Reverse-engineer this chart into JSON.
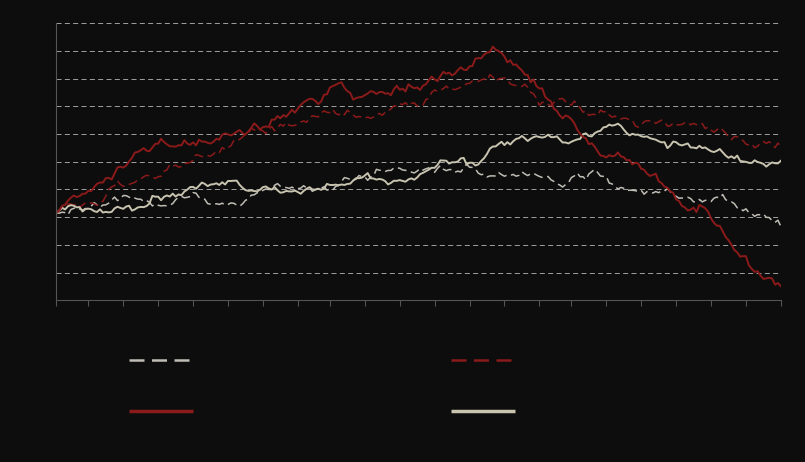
{
  "background_color": "#0d0d0d",
  "plot_bg_color": "#0d0d0d",
  "grid_color": "#ffffff",
  "darkred": "#8b1a1a",
  "lightgray": "#c8c4b0",
  "blackish": "#c0bdb5",
  "n_points": 250,
  "figsize": [
    8.05,
    4.62
  ],
  "dpi": 100,
  "legend_items": [
    {
      "color": "#c0bdb5",
      "linestyle": "dashed",
      "label": ""
    },
    {
      "color": "#8b1a1a",
      "linestyle": "dashed",
      "label": ""
    },
    {
      "color": "#8b1a1a",
      "linestyle": "solid",
      "label": ""
    },
    {
      "color": "#c8c4b0",
      "linestyle": "solid",
      "label": ""
    }
  ]
}
